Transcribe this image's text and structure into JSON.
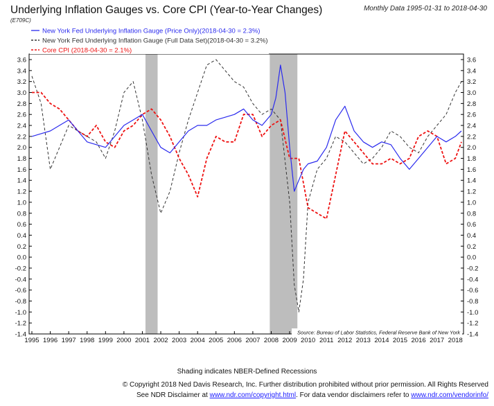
{
  "header": {
    "title": "Underlying Inflation Gauges vs. Core CPI (Year-to-Year Changes)",
    "code": "(E709C)",
    "period": "Monthly Data 1995-01-31 to 2018-04-30"
  },
  "footer": {
    "shading_note": "Shading indicates NBER-Defined Recessions",
    "copyright": "© Copyright 2018 Ned Davis Research, Inc. Further distribution prohibited without prior permission. All Rights Reserved",
    "disclaimer_prefix": "See NDR Disclaimer at ",
    "disclaimer_link1": "www.ndr.com/copyright.html",
    "disclaimer_middle": ". For data vendor disclaimers refer to ",
    "disclaimer_link2": "www.ndr.com/vendorinfo/"
  },
  "chart_data": {
    "type": "line",
    "source": "Source:  Bureau of Labor Statistics, Federal Reserve Bank of New York",
    "ylim": [
      -1.4,
      3.8
    ],
    "xlim": [
      1995.0,
      2018.33
    ],
    "y_ticks": [
      "3.6",
      "3.4",
      "3.2",
      "3.0",
      "2.8",
      "2.6",
      "2.4",
      "2.2",
      "2.0",
      "1.8",
      "1.6",
      "1.4",
      "1.2",
      "1.0",
      "0.8",
      "0.6",
      "0.4",
      "0.2",
      "0.0",
      "-0.2",
      "-0.4",
      "-0.6",
      "-0.8",
      "-1.0",
      "-1.2",
      "-1.4"
    ],
    "x_ticks": [
      "1995",
      "1996",
      "1997",
      "1998",
      "1999",
      "2000",
      "2001",
      "2002",
      "2003",
      "2004",
      "2005",
      "2006",
      "2007",
      "2008",
      "2009",
      "2010",
      "2011",
      "2012",
      "2013",
      "2014",
      "2015",
      "2016",
      "2017",
      "2018"
    ],
    "recessions": [
      [
        2001.17,
        2001.83
      ],
      [
        2007.92,
        2009.42
      ]
    ],
    "grid": false,
    "legend_position": "top-left",
    "series": [
      {
        "name": "New York Fed Underlying Inflation Gauge (Price Only)(2018-04-30 = 2.3%)",
        "color": "#2a2aee",
        "dash": "solid",
        "x": [
          1995.0,
          1995.5,
          1996.0,
          1996.5,
          1997.0,
          1997.5,
          1998.0,
          1998.5,
          1999.0,
          1999.5,
          2000.0,
          2000.5,
          2001.0,
          2001.5,
          2002.0,
          2002.5,
          2003.0,
          2003.5,
          2004.0,
          2004.5,
          2005.0,
          2005.5,
          2006.0,
          2006.5,
          2007.0,
          2007.5,
          2008.0,
          2008.25,
          2008.5,
          2008.75,
          2009.0,
          2009.25,
          2009.5,
          2009.75,
          2010.0,
          2010.5,
          2011.0,
          2011.5,
          2012.0,
          2012.5,
          2013.0,
          2013.5,
          2014.0,
          2014.5,
          2015.0,
          2015.5,
          2016.0,
          2016.5,
          2017.0,
          2017.5,
          2018.0,
          2018.33
        ],
        "y": [
          2.2,
          2.25,
          2.3,
          2.4,
          2.5,
          2.3,
          2.1,
          2.05,
          2.0,
          2.2,
          2.4,
          2.5,
          2.6,
          2.3,
          2.0,
          1.9,
          2.1,
          2.3,
          2.4,
          2.4,
          2.5,
          2.55,
          2.6,
          2.7,
          2.5,
          2.4,
          2.6,
          2.9,
          3.5,
          3.0,
          2.0,
          1.2,
          1.4,
          1.6,
          1.7,
          1.75,
          2.0,
          2.5,
          2.75,
          2.3,
          2.1,
          2.0,
          2.1,
          2.05,
          1.8,
          1.6,
          1.8,
          2.0,
          2.2,
          2.1,
          2.2,
          2.3
        ]
      },
      {
        "name": "New York Fed Underlying Inflation Gauge (Full Data Set)(2018-04-30 = 3.2%)",
        "color": "#333333",
        "dash": "dashed",
        "x": [
          1995.0,
          1995.5,
          1996.0,
          1996.5,
          1997.0,
          1997.5,
          1998.0,
          1998.5,
          1999.0,
          1999.5,
          2000.0,
          2000.5,
          2001.0,
          2001.5,
          2002.0,
          2002.5,
          2003.0,
          2003.5,
          2004.0,
          2004.5,
          2005.0,
          2005.5,
          2006.0,
          2006.5,
          2007.0,
          2007.5,
          2008.0,
          2008.5,
          2009.0,
          2009.25,
          2009.5,
          2009.75,
          2010.0,
          2010.5,
          2011.0,
          2011.5,
          2012.0,
          2012.5,
          2013.0,
          2013.5,
          2014.0,
          2014.5,
          2015.0,
          2015.5,
          2016.0,
          2016.5,
          2017.0,
          2017.5,
          2018.0,
          2018.33
        ],
        "y": [
          3.3,
          2.8,
          1.6,
          2.0,
          2.4,
          2.3,
          2.2,
          2.1,
          1.8,
          2.3,
          3.0,
          3.2,
          2.5,
          1.5,
          0.8,
          1.2,
          1.9,
          2.5,
          3.0,
          3.5,
          3.6,
          3.4,
          3.2,
          3.1,
          2.8,
          2.6,
          2.7,
          2.5,
          1.0,
          -0.5,
          -1.0,
          -0.4,
          1.0,
          1.6,
          1.8,
          2.2,
          2.1,
          1.9,
          1.7,
          1.8,
          2.0,
          2.3,
          2.2,
          2.0,
          1.9,
          2.2,
          2.4,
          2.6,
          3.0,
          3.2
        ]
      },
      {
        "name": "Core CPI (2018-04-30 = 2.1%)",
        "color": "#ee1111",
        "dash": "dashed",
        "x": [
          1995.0,
          1995.5,
          1996.0,
          1996.5,
          1997.0,
          1997.5,
          1998.0,
          1998.5,
          1999.0,
          1999.5,
          2000.0,
          2000.5,
          2001.0,
          2001.5,
          2002.0,
          2002.5,
          2003.0,
          2003.5,
          2004.0,
          2004.5,
          2005.0,
          2005.5,
          2006.0,
          2006.5,
          2007.0,
          2007.5,
          2008.0,
          2008.5,
          2009.0,
          2009.5,
          2010.0,
          2010.5,
          2011.0,
          2011.5,
          2012.0,
          2012.5,
          2013.0,
          2013.5,
          2014.0,
          2014.5,
          2015.0,
          2015.5,
          2016.0,
          2016.5,
          2017.0,
          2017.5,
          2018.0,
          2018.33
        ],
        "y": [
          3.0,
          3.0,
          2.8,
          2.7,
          2.5,
          2.3,
          2.2,
          2.4,
          2.1,
          2.0,
          2.3,
          2.4,
          2.6,
          2.7,
          2.5,
          2.2,
          1.8,
          1.5,
          1.1,
          1.8,
          2.2,
          2.1,
          2.1,
          2.6,
          2.6,
          2.2,
          2.4,
          2.5,
          1.8,
          1.8,
          0.9,
          0.8,
          0.7,
          1.5,
          2.3,
          2.1,
          1.9,
          1.7,
          1.7,
          1.8,
          1.7,
          1.8,
          2.2,
          2.3,
          2.2,
          1.7,
          1.8,
          2.1
        ]
      }
    ]
  }
}
